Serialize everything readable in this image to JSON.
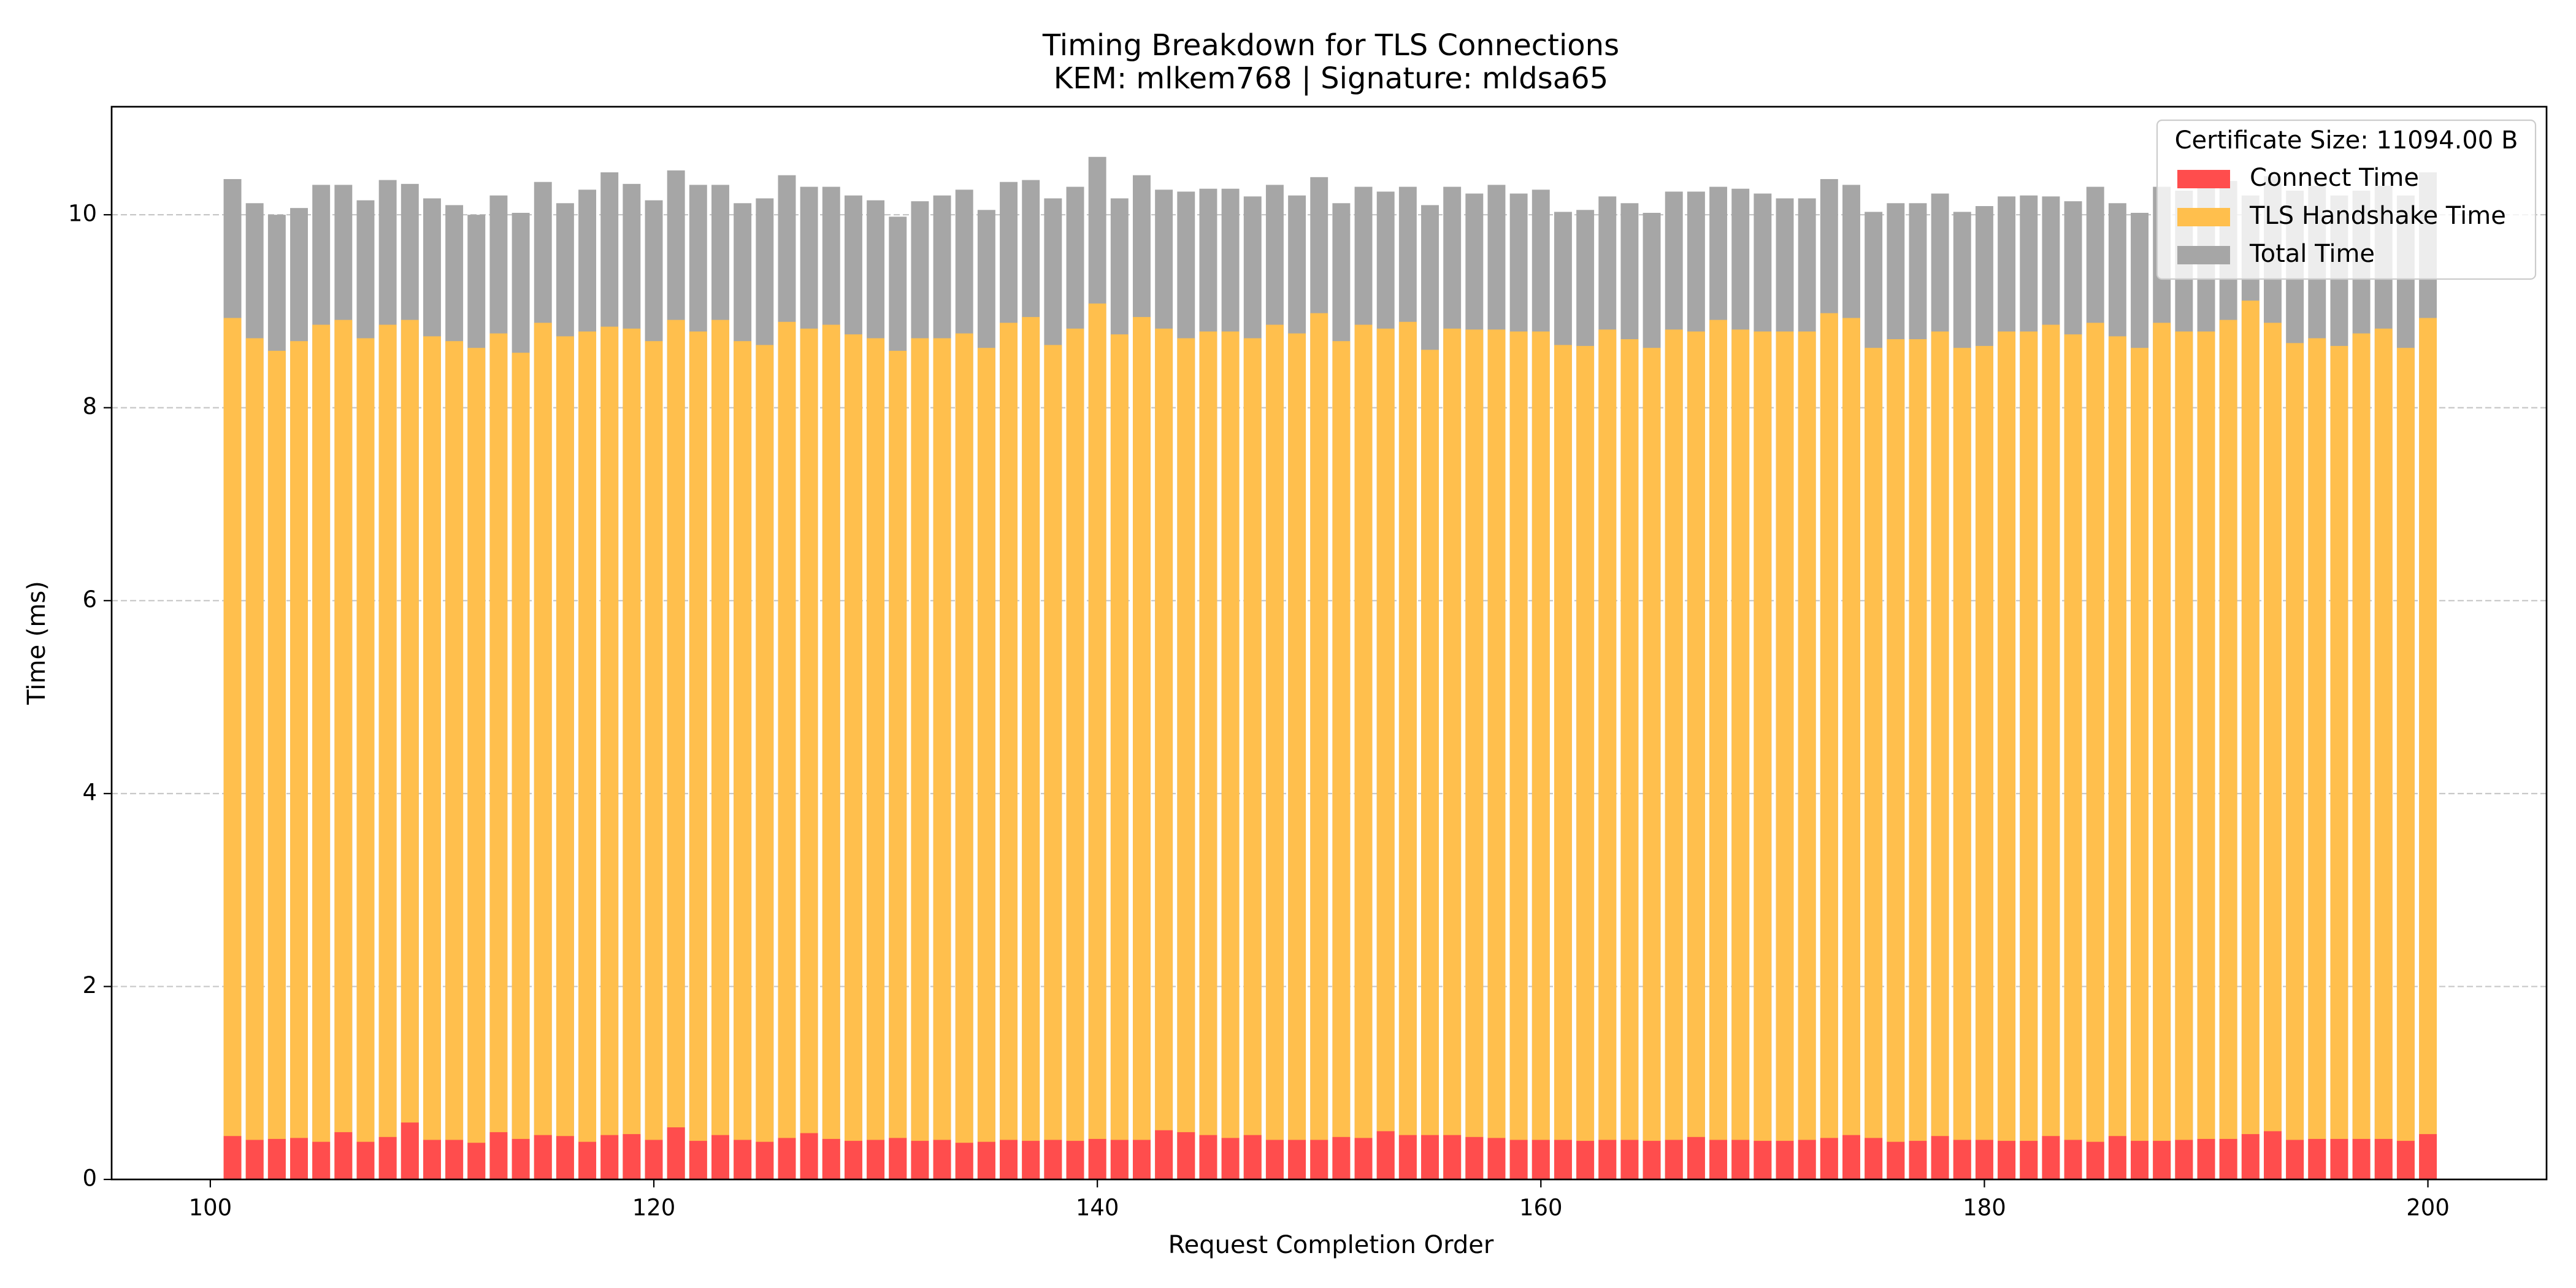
{
  "chart_data": {
    "type": "bar",
    "overlap": true,
    "title": "Timing Breakdown for TLS Connections",
    "subtitle": "KEM: mlkem768 | Signature: mldsa65",
    "x_label": "Request Completion Order",
    "y_label": "Time (ms)",
    "legend_title": "Certificate Size: 11094.00 B",
    "legend": "upper right",
    "grid": "y",
    "bar_width": 0.8,
    "x": [
      101,
      102,
      103,
      104,
      105,
      106,
      107,
      108,
      109,
      110,
      111,
      112,
      113,
      114,
      115,
      116,
      117,
      118,
      119,
      120,
      121,
      122,
      123,
      124,
      125,
      126,
      127,
      128,
      129,
      130,
      131,
      132,
      133,
      134,
      135,
      136,
      137,
      138,
      139,
      140,
      141,
      142,
      143,
      144,
      145,
      146,
      147,
      148,
      149,
      150,
      151,
      152,
      153,
      154,
      155,
      156,
      157,
      158,
      159,
      160,
      161,
      162,
      163,
      164,
      165,
      166,
      167,
      168,
      169,
      170,
      171,
      172,
      173,
      174,
      175,
      176,
      177,
      178,
      179,
      180,
      181,
      182,
      183,
      184,
      185,
      186,
      187,
      188,
      189,
      190,
      191,
      192,
      193,
      194,
      195,
      196,
      197,
      198,
      199,
      200
    ],
    "xlim": [
      95.55,
      205.35
    ],
    "xticks": [
      100,
      120,
      140,
      160,
      180,
      200
    ],
    "ylim": [
      0,
      11.12
    ],
    "yticks": [
      0,
      2,
      4,
      6,
      8,
      10
    ],
    "series": [
      {
        "name": "Connect Time",
        "color": "#ff4d4d",
        "values": [
          0.45,
          0.41,
          0.42,
          0.43,
          0.39,
          0.49,
          0.39,
          0.44,
          0.59,
          0.41,
          0.41,
          0.38,
          0.49,
          0.42,
          0.46,
          0.45,
          0.39,
          0.46,
          0.47,
          0.41,
          0.54,
          0.4,
          0.46,
          0.41,
          0.39,
          0.43,
          0.48,
          0.42,
          0.4,
          0.41,
          0.43,
          0.4,
          0.41,
          0.38,
          0.39,
          0.41,
          0.4,
          0.41,
          0.4,
          0.42,
          0.41,
          0.41,
          0.51,
          0.49,
          0.46,
          0.43,
          0.46,
          0.41,
          0.41,
          0.41,
          0.44,
          0.43,
          0.5,
          0.46,
          0.46,
          0.46,
          0.44,
          0.43,
          0.41,
          0.41,
          0.41,
          0.4,
          0.41,
          0.41,
          0.4,
          0.41,
          0.44,
          0.41,
          0.41,
          0.4,
          0.4,
          0.41,
          0.43,
          0.46,
          0.43,
          0.39,
          0.4,
          0.45,
          0.41,
          0.41,
          0.4,
          0.4,
          0.45,
          0.41,
          0.39,
          0.45,
          0.4,
          0.4,
          0.41,
          0.42,
          0.42,
          0.47,
          0.5,
          0.41,
          0.42,
          0.42,
          0.42,
          0.42,
          0.4,
          0.47
        ]
      },
      {
        "name": "TLS Handshake Time",
        "color": "#ffbf4d",
        "values": [
          8.93,
          8.72,
          8.59,
          8.69,
          8.86,
          8.91,
          8.72,
          8.86,
          8.91,
          8.74,
          8.69,
          8.62,
          8.77,
          8.57,
          8.88,
          8.74,
          8.79,
          8.84,
          8.82,
          8.69,
          8.91,
          8.79,
          8.91,
          8.69,
          8.65,
          8.89,
          8.82,
          8.86,
          8.76,
          8.72,
          8.59,
          8.72,
          8.72,
          8.77,
          8.62,
          8.88,
          8.94,
          8.65,
          8.82,
          9.08,
          8.76,
          8.94,
          8.82,
          8.72,
          8.79,
          8.79,
          8.72,
          8.86,
          8.77,
          8.98,
          8.69,
          8.86,
          8.82,
          8.89,
          8.6,
          8.82,
          8.81,
          8.81,
          8.79,
          8.79,
          8.65,
          8.64,
          8.81,
          8.71,
          8.62,
          8.81,
          8.79,
          8.91,
          8.81,
          8.79,
          8.79,
          8.79,
          8.98,
          8.93,
          8.62,
          8.71,
          8.71,
          8.79,
          8.62,
          8.64,
          8.79,
          8.79,
          8.86,
          8.76,
          8.88,
          8.74,
          8.62,
          8.88,
          8.79,
          8.79,
          8.91,
          9.11,
          8.88,
          8.67,
          8.72,
          8.64,
          8.77,
          8.82,
          8.62,
          8.93
        ]
      },
      {
        "name": "Total Time",
        "color": "#a6a6a6",
        "values": [
          10.37,
          10.12,
          10.0,
          10.07,
          10.31,
          10.31,
          10.15,
          10.36,
          10.32,
          10.17,
          10.1,
          10.0,
          10.2,
          10.02,
          10.34,
          10.12,
          10.26,
          10.44,
          10.32,
          10.15,
          10.46,
          10.31,
          10.31,
          10.12,
          10.17,
          10.41,
          10.29,
          10.29,
          10.2,
          10.15,
          9.98,
          10.14,
          10.2,
          10.26,
          10.05,
          10.34,
          10.36,
          10.17,
          10.29,
          10.6,
          10.17,
          10.41,
          10.26,
          10.24,
          10.27,
          10.27,
          10.19,
          10.31,
          10.2,
          10.39,
          10.12,
          10.29,
          10.24,
          10.29,
          10.1,
          10.29,
          10.22,
          10.31,
          10.22,
          10.26,
          10.03,
          10.05,
          10.19,
          10.12,
          10.02,
          10.24,
          10.24,
          10.29,
          10.27,
          10.22,
          10.17,
          10.17,
          10.37,
          10.31,
          10.03,
          10.12,
          10.12,
          10.22,
          10.03,
          10.09,
          10.19,
          10.2,
          10.19,
          10.14,
          10.29,
          10.12,
          10.02,
          10.29,
          10.25,
          10.3,
          10.35,
          10.2,
          10.4,
          10.25,
          10.3,
          10.2,
          10.25,
          10.3,
          10.2,
          10.44
        ]
      }
    ]
  }
}
